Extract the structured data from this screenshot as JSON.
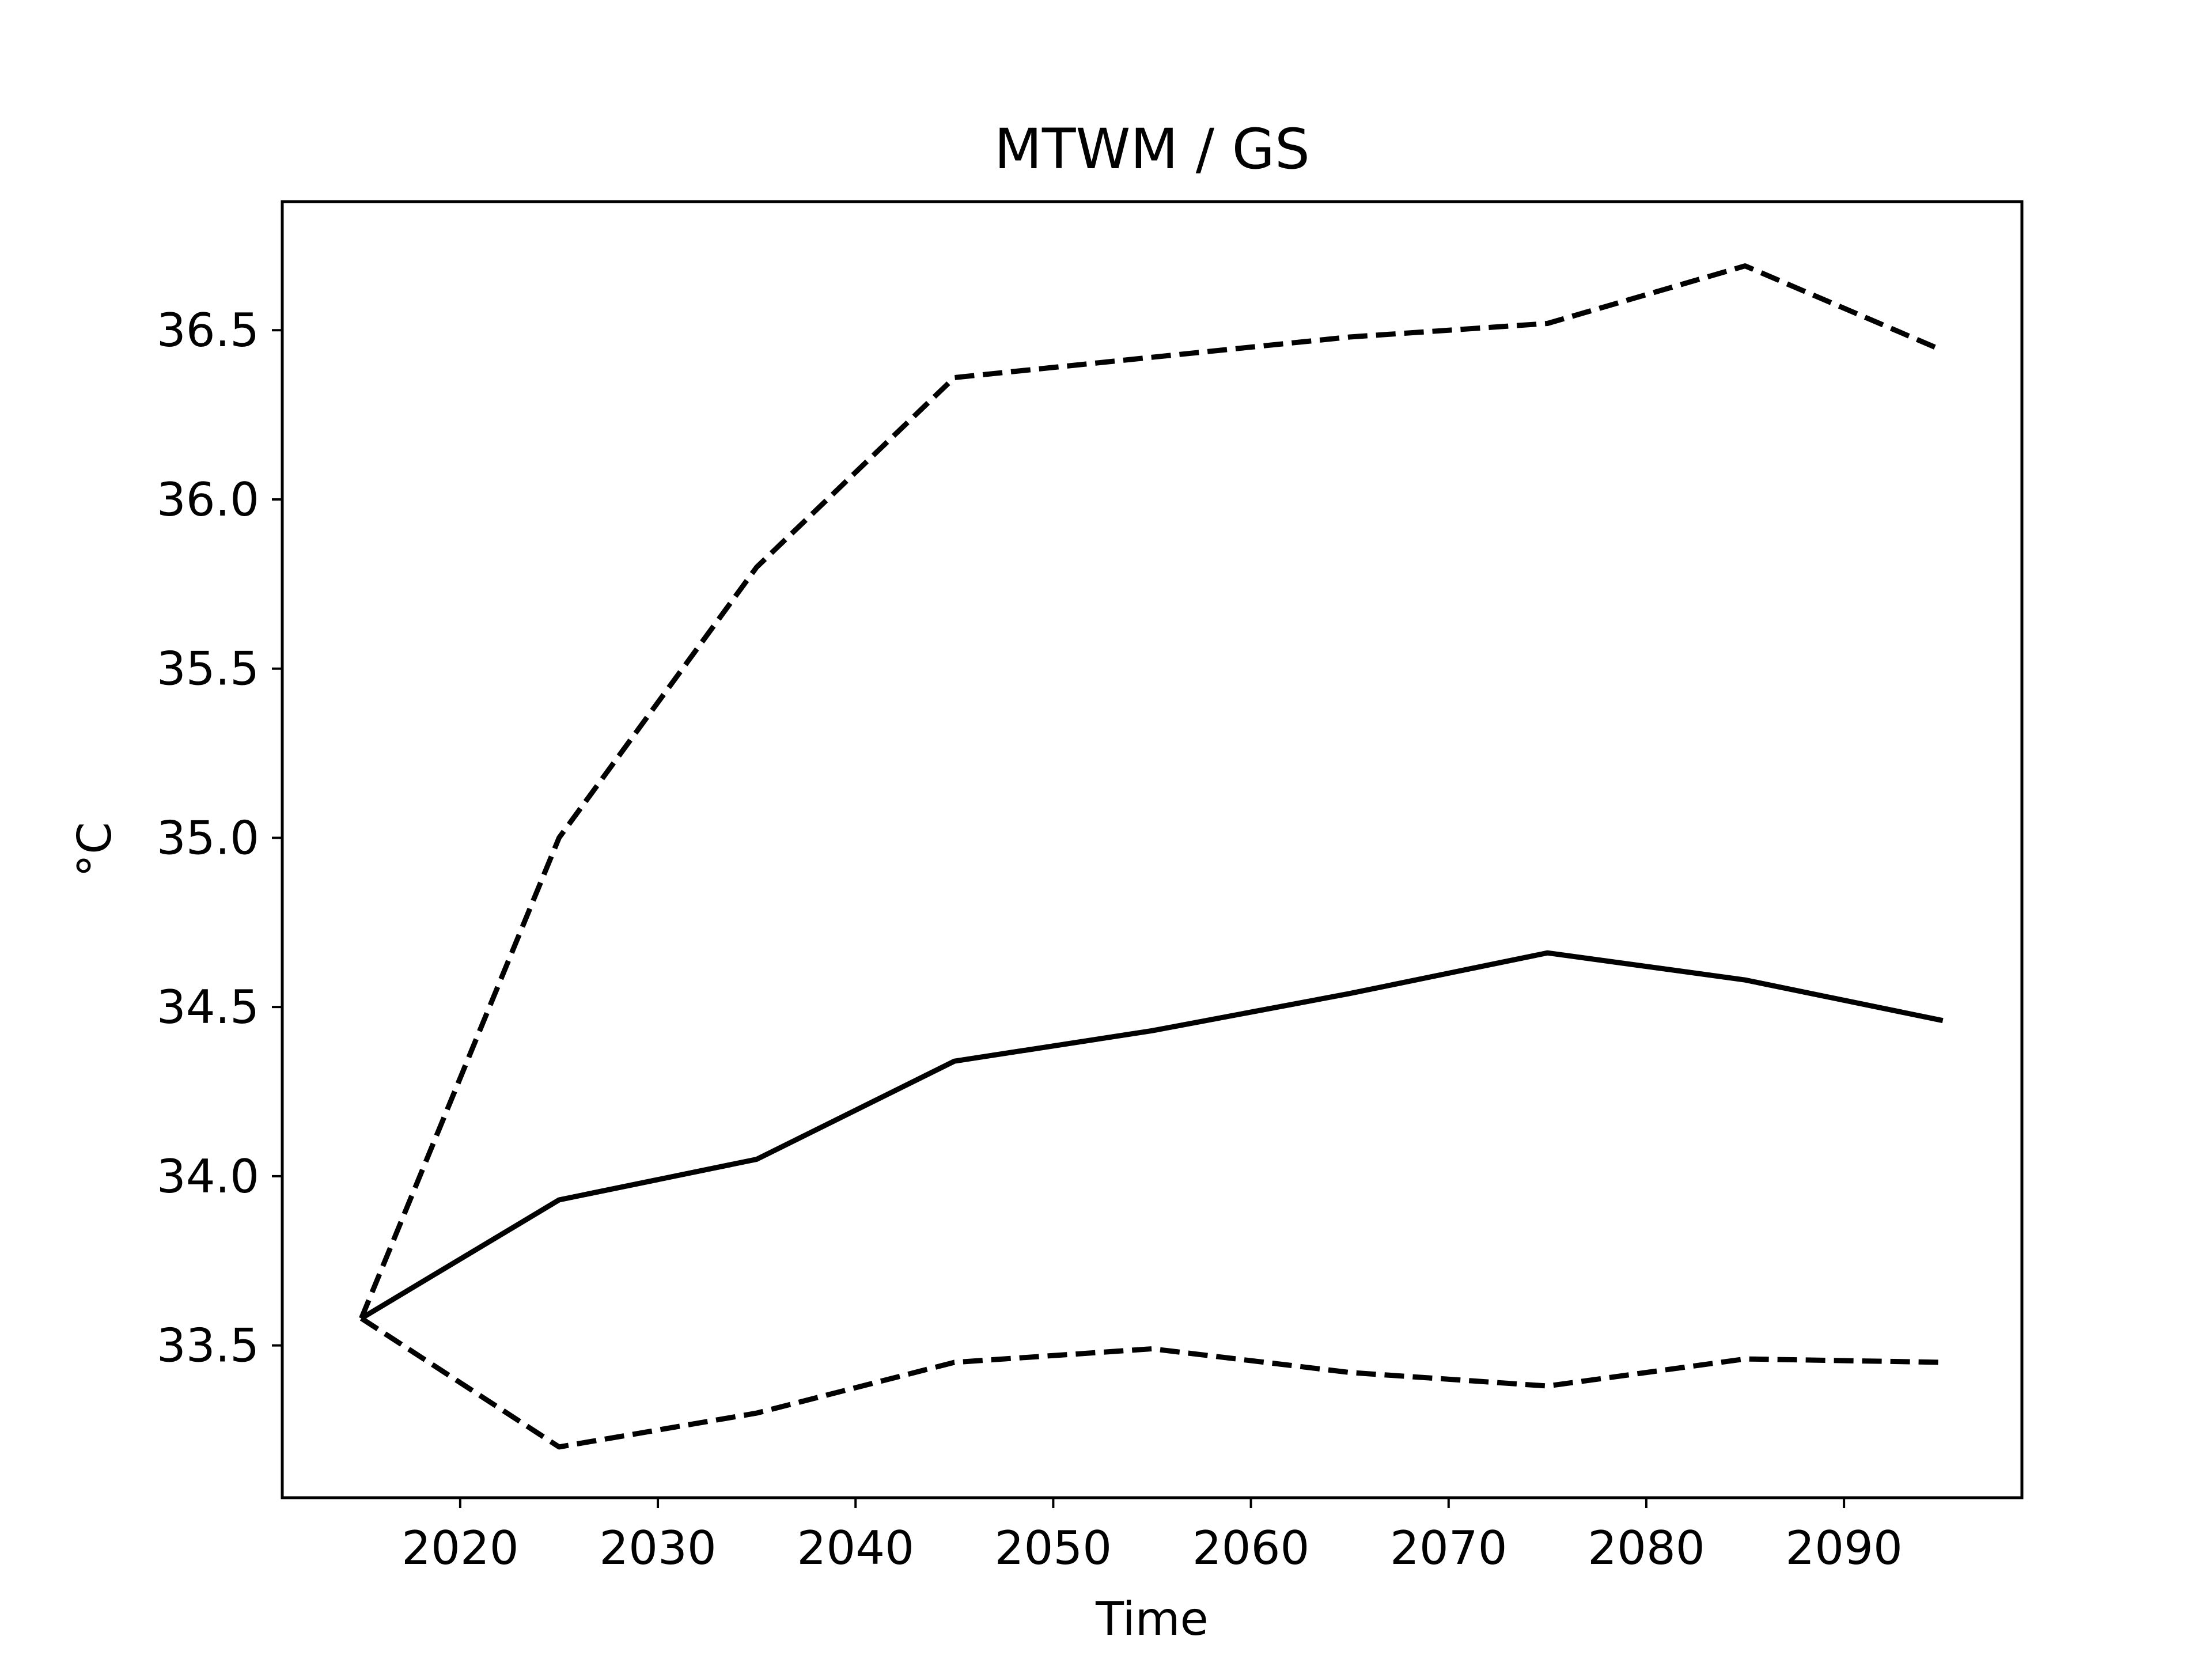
{
  "chart_data": {
    "type": "line",
    "title": "MTWM / GS",
    "xlabel": "Time",
    "ylabel": "°C",
    "xlim": [
      2011,
      2099
    ],
    "ylim": [
      33.05,
      36.88
    ],
    "xticks": [
      2020,
      2030,
      2040,
      2050,
      2060,
      2070,
      2080,
      2090
    ],
    "yticks": [
      33.5,
      34.0,
      34.5,
      35.0,
      35.5,
      36.0,
      36.5
    ],
    "x": [
      2015,
      2025,
      2035,
      2045,
      2055,
      2065,
      2075,
      2085,
      2095
    ],
    "grid": false,
    "legend": false,
    "series": [
      {
        "style": "dashed",
        "color": "#000000",
        "values": [
          33.58,
          35.0,
          35.8,
          36.36,
          36.42,
          36.48,
          36.52,
          36.69,
          36.44
        ]
      },
      {
        "style": "solid",
        "color": "#000000",
        "values": [
          33.58,
          33.93,
          34.05,
          34.34,
          34.43,
          34.54,
          34.66,
          34.58,
          34.46
        ]
      },
      {
        "style": "dashed",
        "color": "#000000",
        "values": [
          33.58,
          33.2,
          33.3,
          33.45,
          33.49,
          33.42,
          33.38,
          33.46,
          33.45
        ]
      }
    ]
  }
}
